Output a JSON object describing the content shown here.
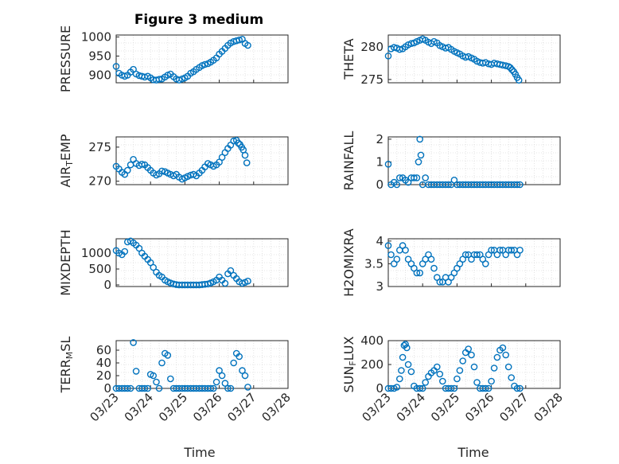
{
  "figure": {
    "title": "Figure 3 medium",
    "xlabel": "Time"
  },
  "colors": {
    "marker": "#0072BD",
    "axis": "#262626"
  },
  "chart_data": [
    {
      "type": "scatter",
      "id": "pressure",
      "ylabel": "PRESSURE",
      "ylabel_sub": null,
      "xlim": [
        "03/23",
        "03/28"
      ],
      "ylim": [
        880,
        1005
      ],
      "yticks": [
        900,
        950,
        1000
      ],
      "yticklabels": [
        "900",
        "950",
        "1000"
      ],
      "xticks": [
        "03/23",
        "03/24",
        "03/25",
        "03/26",
        "03/27",
        "03/28"
      ],
      "show_xticklabels": false,
      "x": [
        0.0,
        0.08,
        0.17,
        0.25,
        0.33,
        0.42,
        0.5,
        0.58,
        0.67,
        0.75,
        0.83,
        0.92,
        1.0,
        1.08,
        1.17,
        1.25,
        1.33,
        1.42,
        1.5,
        1.58,
        1.67,
        1.75,
        1.83,
        1.92,
        2.0,
        2.08,
        2.17,
        2.25,
        2.33,
        2.42,
        2.5,
        2.58,
        2.67,
        2.75,
        2.83,
        2.92,
        3.0,
        3.08,
        3.17,
        3.25,
        3.33,
        3.42,
        3.5,
        3.58,
        3.67,
        3.75,
        3.83
      ],
      "y": [
        923,
        905,
        900,
        897,
        900,
        908,
        915,
        903,
        899,
        897,
        895,
        897,
        893,
        888,
        887,
        889,
        890,
        895,
        900,
        903,
        896,
        890,
        887,
        890,
        893,
        897,
        905,
        909,
        915,
        920,
        925,
        928,
        930,
        934,
        939,
        945,
        955,
        962,
        970,
        978,
        984,
        988,
        990,
        992,
        994,
        983,
        978
      ]
    },
    {
      "type": "scatter",
      "id": "theta",
      "ylabel": "THETA",
      "ylabel_sub": null,
      "xlim": [
        "03/23",
        "03/28"
      ],
      "ylim": [
        274.5,
        281.8
      ],
      "yticks": [
        275,
        280
      ],
      "yticklabels": [
        "275",
        "280"
      ],
      "xticks": [
        "03/23",
        "03/24",
        "03/25",
        "03/26",
        "03/27",
        "03/28"
      ],
      "show_xticklabels": false,
      "x": [
        0.0,
        0.08,
        0.17,
        0.25,
        0.33,
        0.42,
        0.5,
        0.58,
        0.67,
        0.75,
        0.83,
        0.92,
        1.0,
        1.08,
        1.17,
        1.25,
        1.33,
        1.42,
        1.5,
        1.58,
        1.67,
        1.75,
        1.83,
        1.92,
        2.0,
        2.08,
        2.17,
        2.25,
        2.33,
        2.42,
        2.5,
        2.58,
        2.67,
        2.75,
        2.83,
        2.92,
        3.0,
        3.08,
        3.17,
        3.25,
        3.33,
        3.42,
        3.5,
        3.55,
        3.6,
        3.65,
        3.7,
        3.75,
        3.8
      ],
      "y": [
        278.6,
        279.7,
        279.9,
        279.8,
        279.6,
        279.7,
        280.0,
        280.3,
        280.5,
        280.6,
        280.8,
        281.0,
        281.2,
        281.0,
        280.7,
        280.5,
        280.8,
        280.6,
        280.2,
        280.0,
        279.8,
        279.9,
        279.6,
        279.3,
        279.1,
        278.9,
        278.6,
        278.4,
        278.5,
        278.3,
        278.1,
        277.8,
        277.6,
        277.5,
        277.6,
        277.4,
        277.3,
        277.5,
        277.4,
        277.3,
        277.2,
        277.1,
        277.0,
        276.8,
        276.5,
        276.2,
        275.8,
        275.3,
        274.9
      ]
    },
    {
      "type": "scatter",
      "id": "airtemp",
      "ylabel": "AIR",
      "ylabel_sub": "T",
      "ylabel_rest": "EMP",
      "xlim": [
        "03/23",
        "03/28"
      ],
      "ylim": [
        269.5,
        276.5
      ],
      "yticks": [
        270,
        275
      ],
      "yticklabels": [
        "270",
        "275"
      ],
      "xticks": [
        "03/23",
        "03/24",
        "03/25",
        "03/26",
        "03/27",
        "03/28"
      ],
      "show_xticklabels": false,
      "x": [
        0.0,
        0.08,
        0.17,
        0.25,
        0.33,
        0.42,
        0.5,
        0.58,
        0.67,
        0.75,
        0.83,
        0.92,
        1.0,
        1.08,
        1.17,
        1.25,
        1.33,
        1.42,
        1.5,
        1.58,
        1.67,
        1.75,
        1.83,
        1.92,
        2.0,
        2.08,
        2.17,
        2.25,
        2.33,
        2.42,
        2.5,
        2.58,
        2.67,
        2.75,
        2.83,
        2.92,
        3.0,
        3.08,
        3.17,
        3.25,
        3.33,
        3.42,
        3.5,
        3.55,
        3.6,
        3.65,
        3.7,
        3.75,
        3.8
      ],
      "y": [
        272.2,
        271.8,
        271.3,
        271.0,
        271.6,
        272.4,
        273.2,
        272.6,
        272.3,
        272.5,
        272.4,
        272.0,
        271.6,
        271.2,
        270.9,
        271.1,
        271.5,
        271.4,
        271.2,
        271.0,
        270.8,
        271.0,
        270.6,
        270.3,
        270.5,
        270.7,
        270.9,
        271.0,
        270.8,
        271.2,
        271.6,
        272.1,
        272.6,
        272.4,
        272.2,
        272.4,
        272.8,
        273.5,
        274.2,
        274.8,
        275.3,
        275.9,
        276.0,
        275.6,
        275.4,
        275.0,
        274.6,
        273.8,
        272.7
      ]
    },
    {
      "type": "scatter",
      "id": "rainfall",
      "ylabel": "RAINFALL",
      "ylabel_sub": null,
      "xlim": [
        "03/23",
        "03/28"
      ],
      "ylim": [
        0,
        2.1
      ],
      "yticks": [
        0,
        1,
        2
      ],
      "yticklabels": [
        "0",
        "1",
        "2"
      ],
      "xticks": [
        "03/23",
        "03/24",
        "03/25",
        "03/26",
        "03/27",
        "03/28"
      ],
      "show_xticklabels": false,
      "x": [
        0.0,
        0.08,
        0.17,
        0.25,
        0.33,
        0.42,
        0.5,
        0.58,
        0.67,
        0.75,
        0.83,
        0.88,
        0.92,
        0.95,
        1.0,
        1.08,
        1.17,
        1.25,
        1.33,
        1.42,
        1.5,
        1.58,
        1.67,
        1.75,
        1.83,
        1.92,
        2.0,
        2.08,
        2.17,
        2.25,
        2.33,
        2.42,
        2.5,
        2.58,
        2.67,
        2.75,
        2.83,
        2.92,
        3.0,
        3.08,
        3.17,
        3.25,
        3.33,
        3.42,
        3.5,
        3.58,
        3.67,
        3.75,
        3.83
      ],
      "y": [
        0.9,
        0.0,
        0.1,
        0.0,
        0.3,
        0.3,
        0.2,
        0.1,
        0.3,
        0.3,
        0.3,
        1.0,
        2.0,
        1.3,
        0.0,
        0.3,
        0.0,
        0.0,
        0.0,
        0.0,
        0.0,
        0.0,
        0.0,
        0.0,
        0.0,
        0.2,
        0.0,
        0.0,
        0.0,
        0.0,
        0.0,
        0.0,
        0.0,
        0.0,
        0.0,
        0.0,
        0.0,
        0.0,
        0.0,
        0.0,
        0.0,
        0.0,
        0.0,
        0.0,
        0.0,
        0.0,
        0.0,
        0.0,
        0.0
      ]
    },
    {
      "type": "scatter",
      "id": "mixdepth",
      "ylabel": "MIXDEPTH",
      "ylabel_sub": null,
      "xlim": [
        "03/23",
        "03/28"
      ],
      "ylim": [
        -50,
        1450
      ],
      "yticks": [
        0,
        500,
        1000
      ],
      "yticklabels": [
        "0",
        "500",
        "1000"
      ],
      "xticks": [
        "03/23",
        "03/24",
        "03/25",
        "03/26",
        "03/27",
        "03/28"
      ],
      "show_xticklabels": false,
      "x": [
        0.0,
        0.08,
        0.17,
        0.25,
        0.33,
        0.42,
        0.5,
        0.58,
        0.67,
        0.75,
        0.83,
        0.92,
        1.0,
        1.08,
        1.17,
        1.25,
        1.33,
        1.42,
        1.5,
        1.58,
        1.67,
        1.75,
        1.83,
        1.92,
        2.0,
        2.08,
        2.17,
        2.25,
        2.33,
        2.42,
        2.5,
        2.58,
        2.67,
        2.75,
        2.83,
        2.92,
        3.0,
        3.08,
        3.17,
        3.25,
        3.33,
        3.42,
        3.5,
        3.58,
        3.67,
        3.75,
        3.83
      ],
      "y": [
        1080,
        1000,
        950,
        1050,
        1350,
        1380,
        1320,
        1250,
        1150,
        1000,
        900,
        800,
        700,
        550,
        400,
        300,
        250,
        150,
        100,
        60,
        30,
        10,
        0,
        0,
        0,
        0,
        0,
        0,
        0,
        0,
        10,
        20,
        30,
        60,
        100,
        150,
        250,
        150,
        50,
        350,
        450,
        300,
        200,
        100,
        50,
        80,
        120
      ]
    },
    {
      "type": "scatter",
      "id": "h2omixra",
      "ylabel": "H2OMIXRA",
      "ylabel_sub": null,
      "xlim": [
        "03/23",
        "03/28"
      ],
      "ylim": [
        3.0,
        4.05
      ],
      "yticks": [
        3,
        3.5,
        4
      ],
      "yticklabels": [
        "3",
        "3.5",
        "4"
      ],
      "xticks": [
        "03/23",
        "03/24",
        "03/25",
        "03/26",
        "03/27",
        "03/28"
      ],
      "show_xticklabels": false,
      "x": [
        0.0,
        0.08,
        0.17,
        0.25,
        0.33,
        0.42,
        0.5,
        0.58,
        0.67,
        0.75,
        0.83,
        0.92,
        1.0,
        1.08,
        1.17,
        1.25,
        1.33,
        1.42,
        1.5,
        1.58,
        1.67,
        1.75,
        1.83,
        1.92,
        2.0,
        2.08,
        2.17,
        2.25,
        2.33,
        2.42,
        2.5,
        2.58,
        2.67,
        2.75,
        2.83,
        2.92,
        3.0,
        3.08,
        3.17,
        3.25,
        3.33,
        3.42,
        3.5,
        3.58,
        3.67,
        3.75,
        3.83
      ],
      "y": [
        3.9,
        3.7,
        3.5,
        3.6,
        3.8,
        3.9,
        3.8,
        3.6,
        3.5,
        3.4,
        3.3,
        3.3,
        3.5,
        3.6,
        3.7,
        3.6,
        3.4,
        3.2,
        3.1,
        3.1,
        3.2,
        3.1,
        3.2,
        3.3,
        3.4,
        3.5,
        3.6,
        3.7,
        3.7,
        3.6,
        3.7,
        3.7,
        3.7,
        3.6,
        3.5,
        3.7,
        3.8,
        3.8,
        3.7,
        3.8,
        3.8,
        3.7,
        3.8,
        3.8,
        3.8,
        3.7,
        3.8
      ]
    },
    {
      "type": "scatter",
      "id": "terrmsl",
      "ylabel": "TERR",
      "ylabel_sub": "M",
      "ylabel_rest": "SL",
      "xlim": [
        "03/23",
        "03/28"
      ],
      "ylim": [
        0,
        75
      ],
      "yticks": [
        0,
        20,
        40,
        60
      ],
      "yticklabels": [
        "0",
        "20",
        "40",
        "60"
      ],
      "xticks": [
        "03/23",
        "03/24",
        "03/25",
        "03/26",
        "03/27",
        "03/28"
      ],
      "xticklabels": [
        "03/23",
        "03/24",
        "03/25",
        "03/26",
        "03/27",
        "03/28"
      ],
      "show_xticklabels": true,
      "x": [
        0.0,
        0.08,
        0.17,
        0.25,
        0.33,
        0.42,
        0.5,
        0.58,
        0.67,
        0.75,
        0.83,
        0.92,
        1.0,
        1.08,
        1.17,
        1.25,
        1.33,
        1.42,
        1.5,
        1.58,
        1.67,
        1.75,
        1.83,
        1.92,
        2.0,
        2.08,
        2.17,
        2.25,
        2.33,
        2.42,
        2.5,
        2.58,
        2.67,
        2.75,
        2.83,
        2.92,
        3.0,
        3.08,
        3.17,
        3.25,
        3.33,
        3.42,
        3.5,
        3.58,
        3.67,
        3.75,
        3.83
      ],
      "y": [
        0,
        0,
        0,
        0,
        0,
        0,
        72,
        27,
        0,
        0,
        0,
        0,
        22,
        20,
        10,
        0,
        40,
        55,
        52,
        15,
        0,
        0,
        0,
        0,
        0,
        0,
        0,
        0,
        0,
        0,
        0,
        0,
        0,
        0,
        0,
        10,
        28,
        20,
        8,
        0,
        0,
        40,
        55,
        50,
        28,
        20,
        2
      ]
    },
    {
      "type": "scatter",
      "id": "sunflux",
      "ylabel": "SUN",
      "ylabel_sub": "F",
      "ylabel_rest": "LUX",
      "xlim": [
        "03/23",
        "03/28"
      ],
      "ylim": [
        0,
        400
      ],
      "yticks": [
        0,
        200,
        400
      ],
      "yticklabels": [
        "0",
        "200",
        "400"
      ],
      "xticks": [
        "03/23",
        "03/24",
        "03/25",
        "03/26",
        "03/27",
        "03/28"
      ],
      "xticklabels": [
        "03/23",
        "03/24",
        "03/25",
        "03/26",
        "03/27",
        "03/28"
      ],
      "show_xticklabels": true,
      "x": [
        0.0,
        0.08,
        0.17,
        0.25,
        0.33,
        0.38,
        0.42,
        0.46,
        0.5,
        0.54,
        0.58,
        0.67,
        0.75,
        0.83,
        0.92,
        1.0,
        1.08,
        1.17,
        1.25,
        1.33,
        1.42,
        1.5,
        1.58,
        1.67,
        1.75,
        1.83,
        1.92,
        2.0,
        2.08,
        2.17,
        2.25,
        2.33,
        2.42,
        2.5,
        2.58,
        2.67,
        2.75,
        2.83,
        2.92,
        3.0,
        3.08,
        3.17,
        3.25,
        3.33,
        3.42,
        3.5,
        3.58,
        3.67,
        3.75,
        3.83
      ],
      "y": [
        0,
        0,
        0,
        10,
        80,
        150,
        260,
        360,
        370,
        340,
        200,
        140,
        20,
        0,
        0,
        0,
        50,
        100,
        130,
        150,
        180,
        120,
        60,
        0,
        0,
        0,
        0,
        80,
        150,
        230,
        300,
        330,
        280,
        180,
        50,
        0,
        0,
        0,
        0,
        60,
        170,
        260,
        320,
        340,
        280,
        180,
        90,
        20,
        0,
        0
      ]
    }
  ]
}
